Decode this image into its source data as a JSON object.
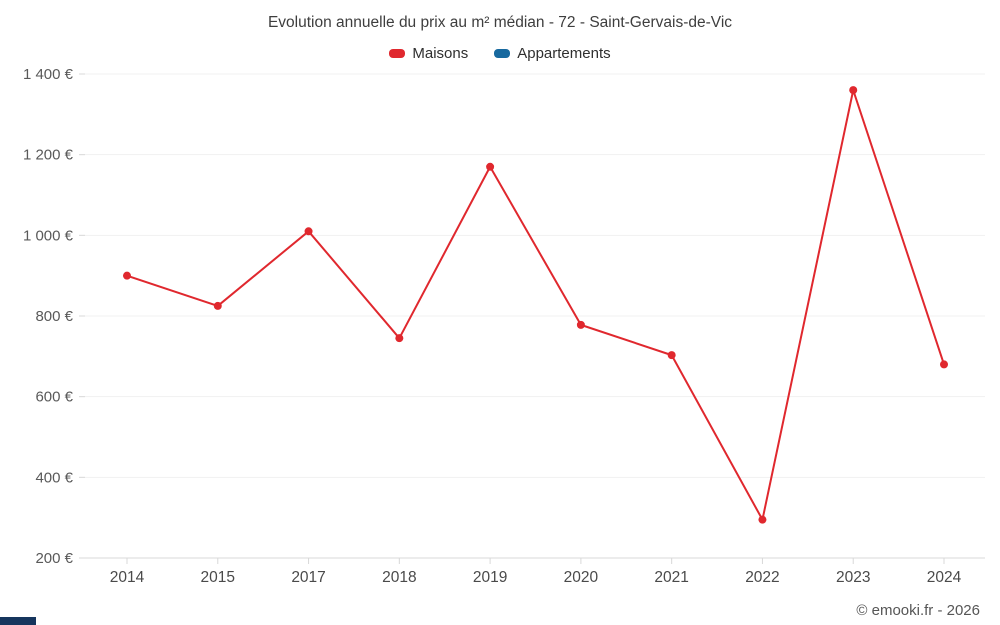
{
  "title": "Evolution annuelle du prix au m² médian - 72 - Saint-Gervais-de-Vic",
  "legend": [
    {
      "label": "Maisons",
      "color": "#e0282e"
    },
    {
      "label": "Appartements",
      "color": "#17699f"
    }
  ],
  "footer": {
    "copyright": "© emooki.fr - 2026"
  },
  "chart_data": {
    "type": "line",
    "title": "Evolution annuelle du prix au m² médian - 72 - Saint-Gervais-de-Vic",
    "categories": [
      "2014",
      "2015",
      "2017",
      "2018",
      "2019",
      "2020",
      "2021",
      "2022",
      "2023",
      "2024"
    ],
    "series": [
      {
        "name": "Maisons",
        "color": "#e0282e",
        "values": [
          900,
          825,
          1010,
          745,
          1170,
          778,
          703,
          295,
          1360,
          680
        ]
      },
      {
        "name": "Appartements",
        "color": "#17699f",
        "values": []
      }
    ],
    "xlabel": "",
    "ylabel": "",
    "ylim": [
      200,
      1400
    ],
    "ytick_step": 200,
    "ytick_labels": [
      "200 €",
      "400 €",
      "600 €",
      "800 €",
      "1 000 €",
      "1 200 €",
      "1 400 €"
    ],
    "grid": true,
    "legend_position": "top"
  }
}
